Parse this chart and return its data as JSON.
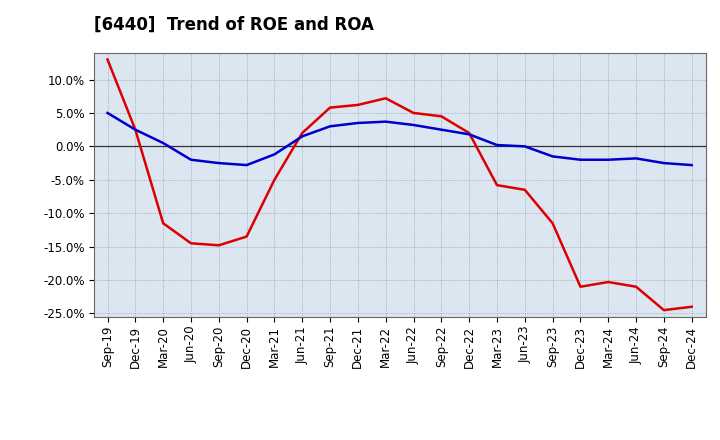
{
  "title": "[6440]  Trend of ROE and ROA",
  "labels": [
    "Sep-19",
    "Dec-19",
    "Mar-20",
    "Jun-20",
    "Sep-20",
    "Dec-20",
    "Mar-21",
    "Jun-21",
    "Sep-21",
    "Dec-21",
    "Mar-22",
    "Jun-22",
    "Sep-22",
    "Dec-22",
    "Mar-23",
    "Jun-23",
    "Sep-23",
    "Dec-23",
    "Mar-24",
    "Jun-24",
    "Sep-24",
    "Dec-24"
  ],
  "ROE": [
    13.0,
    2.5,
    -11.5,
    -14.5,
    -14.8,
    -13.5,
    -5.0,
    2.0,
    5.8,
    6.2,
    7.2,
    5.0,
    4.5,
    2.0,
    -5.8,
    -6.5,
    -11.5,
    -21.0,
    -20.3,
    -21.0,
    -24.5,
    -24.0
  ],
  "ROA": [
    5.0,
    2.5,
    0.5,
    -2.0,
    -2.5,
    -2.8,
    -1.2,
    1.5,
    3.0,
    3.5,
    3.7,
    3.2,
    2.5,
    1.8,
    0.2,
    0.0,
    -1.5,
    -2.0,
    -2.0,
    -1.8,
    -2.5,
    -2.8
  ],
  "roe_color": "#dd0000",
  "roa_color": "#0000cc",
  "line_width": 1.8,
  "ylim": [
    -25.5,
    14.0
  ],
  "yticks": [
    -25.0,
    -20.0,
    -15.0,
    -10.0,
    -5.0,
    0.0,
    5.0,
    10.0
  ],
  "background_color": "#ffffff",
  "plot_bg_color": "#dce6f1",
  "grid_color": "#7a8fa8",
  "title_fontsize": 12,
  "legend_fontsize": 10,
  "tick_fontsize": 8.5
}
